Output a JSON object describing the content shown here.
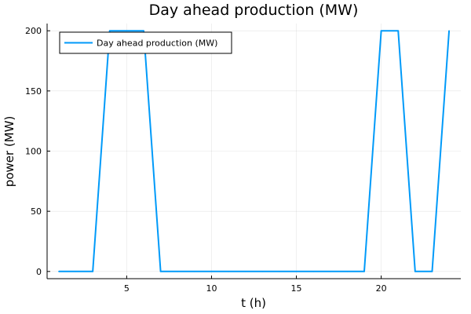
{
  "chart_data": {
    "type": "line",
    "title": "Day ahead production (MW)",
    "xlabel": "t (h)",
    "ylabel": "power (MW)",
    "xlim": [
      0.31,
      24.69
    ],
    "ylim": [
      -6,
      206
    ],
    "xticks": [
      5,
      10,
      15,
      20
    ],
    "yticks": [
      0,
      50,
      100,
      150,
      200
    ],
    "grid": true,
    "legend_position": "top-left",
    "series": [
      {
        "name": "Day ahead production (MW)",
        "color": "#009af9",
        "x": [
          1,
          2,
          3,
          4,
          5,
          6,
          7,
          8,
          9,
          10,
          11,
          12,
          13,
          14,
          15,
          16,
          17,
          18,
          19,
          20,
          21,
          22,
          23,
          24
        ],
        "y": [
          0,
          0,
          0,
          200,
          200,
          200,
          0,
          0,
          0,
          0,
          0,
          0,
          0,
          0,
          0,
          0,
          0,
          0,
          0,
          200,
          200,
          0,
          0,
          200
        ]
      }
    ]
  }
}
